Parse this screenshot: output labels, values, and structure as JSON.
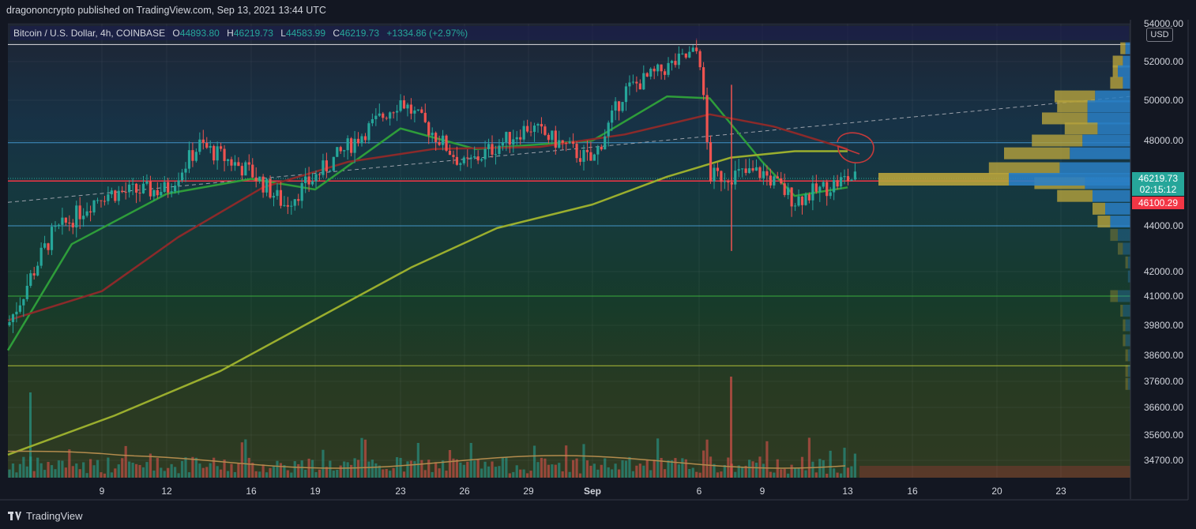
{
  "publisher_line": "dragononcrypto published on TradingView.com, Sep 13, 2021 13:44 UTC",
  "symbol": {
    "name": "Bitcoin / U.S. Dollar, 4h, COINBASE",
    "open_label": "O",
    "open": "44893.80",
    "high_label": "H",
    "high": "46219.73",
    "low_label": "L",
    "low": "44583.99",
    "close_label": "C",
    "close": "46219.73",
    "change": "+1334.86 (+2.97%)"
  },
  "currency": "USD",
  "last_price_label": "46219.73",
  "countdown_label": "02:15:12",
  "red_line_label": "46100.29",
  "footer_brand": "TradingView",
  "colors": {
    "background": "#131722",
    "up": "#26a69a",
    "down": "#ef5350",
    "ma_fast": "#2e9d3a",
    "ma_mid": "#8b2a2a",
    "ma_slow": "#9aae2e",
    "volume_ma": "#b38b4d",
    "profile_buy": "#2a7fc4",
    "profile_sell": "#b7a33c"
  },
  "icons": [
    "tradingview-logo-icon"
  ],
  "chart_data": {
    "type": "candlestick",
    "title": "",
    "xlabel": "",
    "ylabel": "",
    "x_ticks": [
      "9",
      "12",
      "16",
      "19",
      "23",
      "26",
      "29",
      "Sep",
      "6",
      "9",
      "13",
      "16",
      "20",
      "23"
    ],
    "y_ticks": [
      "54000.00",
      "52000.00",
      "50000.00",
      "48000.00",
      "44000.00",
      "42000.00",
      "41000.00",
      "39800.00",
      "38600.00",
      "37600.00",
      "36600.00",
      "35600.00",
      "34700.00"
    ],
    "y_range": [
      34200,
      54200
    ],
    "last_close": 46219.73,
    "current_red_line": 46100.29,
    "horizontal_levels": [
      {
        "price": 52900,
        "color": "#ffffff"
      },
      {
        "price": 47900,
        "color": "#4aa3df"
      },
      {
        "price": 44000,
        "color": "#4aa3df"
      },
      {
        "price": 41000,
        "color": "#3fbf3f"
      },
      {
        "price": 38200,
        "color": "#c7d33a"
      }
    ],
    "trendline": {
      "from": {
        "x": "Aug 5",
        "price": 45100
      },
      "to": {
        "x": "Sep 27",
        "price": 50200
      },
      "style": "dashed"
    },
    "key_points": [
      {
        "date": "Aug 5",
        "price": 39800
      },
      {
        "date": "Aug 7",
        "price": 43500
      },
      {
        "date": "Aug 9",
        "price": 45500
      },
      {
        "date": "Aug 12",
        "price": 45700
      },
      {
        "date": "Aug 14",
        "price": 47800
      },
      {
        "date": "Aug 16",
        "price": 46500
      },
      {
        "date": "Aug 18",
        "price": 45000
      },
      {
        "date": "Aug 20",
        "price": 46800
      },
      {
        "date": "Aug 23",
        "price": 50000
      },
      {
        "date": "Aug 26",
        "price": 46800
      },
      {
        "date": "Aug 29",
        "price": 48700
      },
      {
        "date": "Sep 1",
        "price": 47000
      },
      {
        "date": "Sep 3",
        "price": 50500
      },
      {
        "date": "Sep 6",
        "price": 52600
      },
      {
        "date": "Sep 7",
        "price": 46300
      },
      {
        "date": "Sep 9",
        "price": 46500
      },
      {
        "date": "Sep 11",
        "price": 45200
      },
      {
        "date": "Sep 13",
        "price": 46219.73
      }
    ],
    "moving_averages": [
      {
        "color": "#2e9d3a",
        "points": [
          [
            "Aug 5",
            38800
          ],
          [
            "Aug 8",
            43200
          ],
          [
            "Aug 12",
            45500
          ],
          [
            "Aug 16",
            46200
          ],
          [
            "Aug 19",
            45700
          ],
          [
            "Aug 23",
            48600
          ],
          [
            "Aug 27",
            47600
          ],
          [
            "Sep 1",
            48000
          ],
          [
            "Sep 5",
            50200
          ],
          [
            "Sep 7",
            50100
          ],
          [
            "Sep 9",
            47000
          ],
          [
            "Sep 11",
            45400
          ],
          [
            "Sep 13",
            45800
          ]
        ]
      },
      {
        "color": "#8b2a2a",
        "points": [
          [
            "Aug 5",
            40000
          ],
          [
            "Aug 9",
            41200
          ],
          [
            "Aug 13",
            43500
          ],
          [
            "Aug 17",
            45800
          ],
          [
            "Aug 21",
            47000
          ],
          [
            "Aug 25",
            47600
          ],
          [
            "Aug 30",
            47700
          ],
          [
            "Sep 3",
            48300
          ],
          [
            "Sep 7",
            49300
          ],
          [
            "Sep 10",
            48700
          ],
          [
            "Sep 13",
            47600
          ]
        ]
      },
      {
        "color": "#9aae2e",
        "points": [
          [
            "Aug 5",
            34900
          ],
          [
            "Aug 10",
            36300
          ],
          [
            "Aug 15",
            38000
          ],
          [
            "Aug 20",
            40300
          ],
          [
            "Aug 24",
            42200
          ],
          [
            "Aug 28",
            43900
          ],
          [
            "Sep 1",
            45000
          ],
          [
            "Sep 5",
            46300
          ],
          [
            "Sep 8",
            47200
          ],
          [
            "Sep 11",
            47500
          ],
          [
            "Sep 13",
            47500
          ]
        ]
      }
    ],
    "volume_profile": [
      {
        "price": 52700,
        "buy": 0.02,
        "sell": 0.02
      },
      {
        "price": 52000,
        "buy": 0.03,
        "sell": 0.04
      },
      {
        "price": 51500,
        "buy": 0.05,
        "sell": 0.02
      },
      {
        "price": 50900,
        "buy": 0.03,
        "sell": 0.05
      },
      {
        "price": 50200,
        "buy": 0.14,
        "sell": 0.16
      },
      {
        "price": 49700,
        "buy": 0.17,
        "sell": 0.12
      },
      {
        "price": 49100,
        "buy": 0.17,
        "sell": 0.18
      },
      {
        "price": 48600,
        "buy": 0.13,
        "sell": 0.13
      },
      {
        "price": 48000,
        "buy": 0.19,
        "sell": 0.2
      },
      {
        "price": 47400,
        "buy": 0.24,
        "sell": 0.26
      },
      {
        "price": 46700,
        "buy": 0.28,
        "sell": 0.28
      },
      {
        "price": 46000,
        "buy": 0.18,
        "sell": 0.2
      },
      {
        "price": 45400,
        "buy": 0.15,
        "sell": 0.14
      },
      {
        "price": 44800,
        "buy": 0.1,
        "sell": 0.05
      },
      {
        "price": 44200,
        "buy": 0.08,
        "sell": 0.05
      },
      {
        "price": 43600,
        "buy": 0.05,
        "sell": 0.03
      },
      {
        "price": 43000,
        "buy": 0.03,
        "sell": 0.02
      },
      {
        "price": 42400,
        "buy": 0.01,
        "sell": 0.01
      },
      {
        "price": 41800,
        "buy": 0.01,
        "sell": 0.0
      },
      {
        "price": 41000,
        "buy": 0.05,
        "sell": 0.03
      },
      {
        "price": 40400,
        "buy": 0.03,
        "sell": 0.01
      },
      {
        "price": 39800,
        "buy": 0.02,
        "sell": 0.01
      },
      {
        "price": 39200,
        "buy": 0.02,
        "sell": 0.01
      },
      {
        "price": 38600,
        "buy": 0.01,
        "sell": 0.01
      },
      {
        "price": 38000,
        "buy": 0.01,
        "sell": 0.01
      },
      {
        "price": 37500,
        "buy": 0.01,
        "sell": 0.01
      }
    ]
  }
}
